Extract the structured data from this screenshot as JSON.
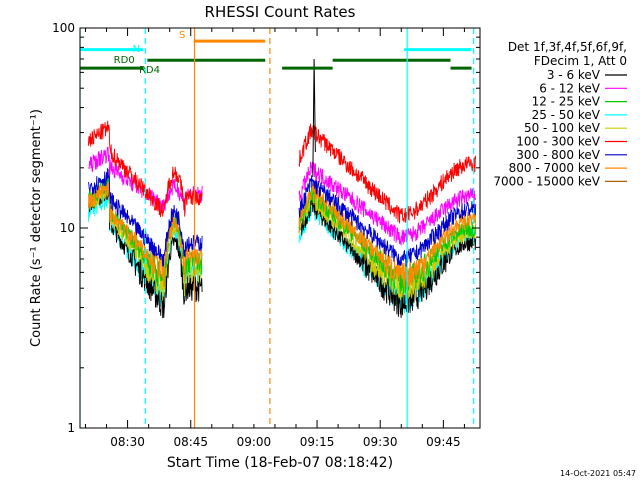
{
  "chart_data": {
    "type": "line",
    "title": "RHESSI Count Rates",
    "xlabel": "Start Time (18-Feb-07 08:18:42)",
    "ylabel": "Count Rate (s⁻¹ detector segment⁻¹)",
    "y_scale": "log",
    "ylim": [
      1,
      100
    ],
    "xlim_minutes": [
      0,
      95
    ],
    "x_ticks": [
      {
        "label": "08:30",
        "minute": 11.3
      },
      {
        "label": "08:45",
        "minute": 26.3
      },
      {
        "label": "09:00",
        "minute": 41.3
      },
      {
        "label": "09:15",
        "minute": 56.3
      },
      {
        "label": "09:30",
        "minute": 71.3
      },
      {
        "label": "09:45",
        "minute": 86.3
      }
    ],
    "y_ticks": [
      {
        "label": "1",
        "value": 1
      },
      {
        "label": "10",
        "value": 10
      },
      {
        "label": "100",
        "value": 100
      }
    ],
    "legend_header": [
      "Det 1f,3f,4f,5f,6f,9f,",
      "FDecim 1, Att 0"
    ],
    "legend_placement": "right",
    "series": [
      {
        "name": "3 - 6 keV",
        "color": "#000000",
        "values": [
          15.5,
          4.0,
          8.5,
          13.0,
          4.2,
          8.5
        ]
      },
      {
        "name": "6 - 12 keV",
        "color": "#ff00ff",
        "values": [
          24.0,
          13.0,
          16.0,
          20.0,
          9.0,
          14.5
        ]
      },
      {
        "name": "12 - 25 keV",
        "color": "#00cc00",
        "values": [
          16.5,
          5.5,
          11.0,
          15.0,
          5.5,
          10.0
        ]
      },
      {
        "name": "25 - 50 keV",
        "color": "#00ffff",
        "values": [
          14.0,
          4.5,
          9.5,
          12.5,
          4.4,
          9.0
        ]
      },
      {
        "name": "50 - 100 keV",
        "color": "#cccc00",
        "values": [
          15.5,
          5.0,
          10.0,
          14.0,
          5.0,
          9.5
        ]
      },
      {
        "name": "100 - 300 keV",
        "color": "#ff0000",
        "values": [
          32.0,
          12.0,
          19.0,
          31.0,
          11.5,
          21.0
        ]
      },
      {
        "name": "300 - 800 keV",
        "color": "#0000cc",
        "values": [
          18.5,
          7.0,
          12.0,
          17.0,
          7.0,
          12.5
        ]
      },
      {
        "name": "800 - 7000 keV",
        "color": "#ff8800",
        "values": [
          16.0,
          6.0,
          10.5,
          15.5,
          5.8,
          11.0
        ]
      },
      {
        "name": "7000 - 15000 keV",
        "color": "#aa6600",
        "values": []
      }
    ],
    "series_x_minutes": [
      7,
      20,
      22,
      55,
      76,
      93
    ],
    "orbit_gap_minutes": [
      29,
      52
    ],
    "flag_bars": [
      {
        "label": "N",
        "color": "#00ffff",
        "start_minute": 0,
        "end_minute": 15,
        "value": 78
      },
      {
        "label": "N",
        "color": "#00ffff",
        "start_minute": 77,
        "end_minute": 93,
        "value": 78
      },
      {
        "label": "S",
        "color": "#ff8800",
        "start_minute": 27,
        "end_minute": 44,
        "value": 86
      },
      {
        "label": "RD0",
        "color": "#006600",
        "start_minute": 16,
        "end_minute": 44,
        "value": 69
      },
      {
        "label": "RD4",
        "color": "#006600",
        "start_minute": 0,
        "end_minute": 15,
        "value": 63
      },
      {
        "label": "",
        "color": "#006600",
        "start_minute": 48,
        "end_minute": 60,
        "value": 63
      },
      {
        "label": "",
        "color": "#006600",
        "start_minute": 60,
        "end_minute": 88,
        "value": 69
      },
      {
        "label": "",
        "color": "#006600",
        "start_minute": 88,
        "end_minute": 93,
        "value": 63
      }
    ],
    "vertical_markers": [
      {
        "minute": 0,
        "color": "#00ffff",
        "style": "solid"
      },
      {
        "minute": 15.5,
        "color": "#00ffff",
        "style": "dashed"
      },
      {
        "minute": 77.7,
        "color": "#00ffff",
        "style": "solid"
      },
      {
        "minute": 93.5,
        "color": "#00ffff",
        "style": "dashed"
      },
      {
        "minute": 27.2,
        "color": "#ff8800",
        "style": "solid"
      },
      {
        "minute": 45.1,
        "color": "#ff8800",
        "style": "dashed"
      }
    ]
  },
  "footer": {
    "timestamp": "14-Oct-2021 05:47"
  }
}
